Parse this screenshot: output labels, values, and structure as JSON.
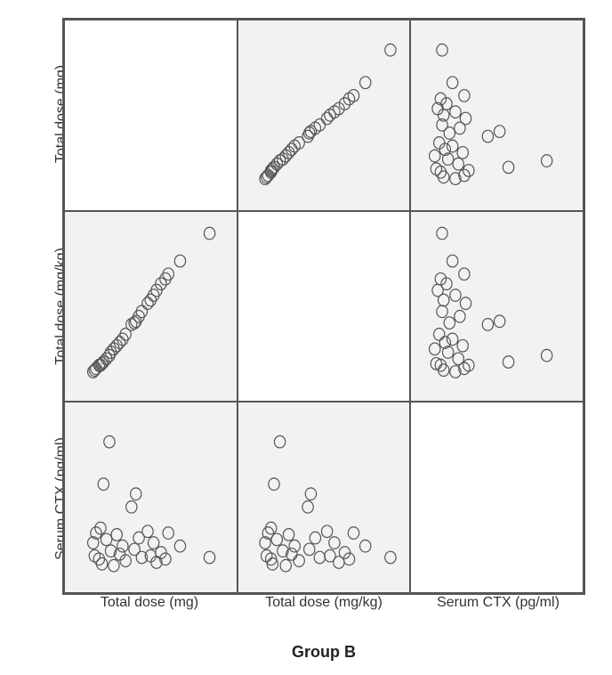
{
  "title": "Group B",
  "axis_labels": [
    "Total dose (mg)",
    "Total dose (mg/kg)",
    "Serum CTX (pg/ml)"
  ],
  "style": {
    "panel_bg": "#f2f2f2",
    "blank_bg": "#ffffff",
    "border_color": "#555555",
    "text_color": "#333333",
    "marker_stroke": "#555555",
    "marker_fill": "none",
    "marker_radius": 3.2,
    "marker_stroke_width": 1.2,
    "label_fontsize": 16,
    "title_fontsize": 18,
    "title_fontweight": "bold"
  },
  "ranges": {
    "total_dose_mg": {
      "min": 0,
      "max": 100
    },
    "total_dose_mgkg": {
      "min": 0,
      "max": 100
    },
    "serum_ctx": {
      "min": 0,
      "max": 100
    }
  },
  "data": [
    {
      "mg": 11,
      "mgkg": 10,
      "ctx": 22
    },
    {
      "mg": 12,
      "mgkg": 11,
      "ctx": 14
    },
    {
      "mg": 13,
      "mgkg": 12,
      "ctx": 28
    },
    {
      "mg": 15,
      "mgkg": 14,
      "ctx": 12
    },
    {
      "mg": 16,
      "mgkg": 14,
      "ctx": 31
    },
    {
      "mg": 17,
      "mgkg": 15,
      "ctx": 9
    },
    {
      "mg": 18,
      "mgkg": 16,
      "ctx": 58
    },
    {
      "mg": 20,
      "mgkg": 18,
      "ctx": 24
    },
    {
      "mg": 22,
      "mgkg": 20,
      "ctx": 84
    },
    {
      "mg": 23,
      "mgkg": 22,
      "ctx": 17
    },
    {
      "mg": 25,
      "mgkg": 24,
      "ctx": 8
    },
    {
      "mg": 27,
      "mgkg": 26,
      "ctx": 27
    },
    {
      "mg": 29,
      "mgkg": 28,
      "ctx": 15
    },
    {
      "mg": 31,
      "mgkg": 30,
      "ctx": 20
    },
    {
      "mg": 33,
      "mgkg": 33,
      "ctx": 11
    },
    {
      "mg": 37,
      "mgkg": 39,
      "ctx": 44
    },
    {
      "mg": 39,
      "mgkg": 40,
      "ctx": 18
    },
    {
      "mg": 40,
      "mgkg": 41,
      "ctx": 52
    },
    {
      "mg": 42,
      "mgkg": 44,
      "ctx": 25
    },
    {
      "mg": 44,
      "mgkg": 47,
      "ctx": 13
    },
    {
      "mg": 48,
      "mgkg": 52,
      "ctx": 29
    },
    {
      "mg": 50,
      "mgkg": 54,
      "ctx": 14
    },
    {
      "mg": 52,
      "mgkg": 57,
      "ctx": 22
    },
    {
      "mg": 54,
      "mgkg": 60,
      "ctx": 10
    },
    {
      "mg": 57,
      "mgkg": 64,
      "ctx": 16
    },
    {
      "mg": 60,
      "mgkg": 67,
      "ctx": 12
    },
    {
      "mg": 62,
      "mgkg": 70,
      "ctx": 28
    },
    {
      "mg": 70,
      "mgkg": 78,
      "ctx": 20
    },
    {
      "mg": 90,
      "mgkg": 95,
      "ctx": 13
    }
  ]
}
